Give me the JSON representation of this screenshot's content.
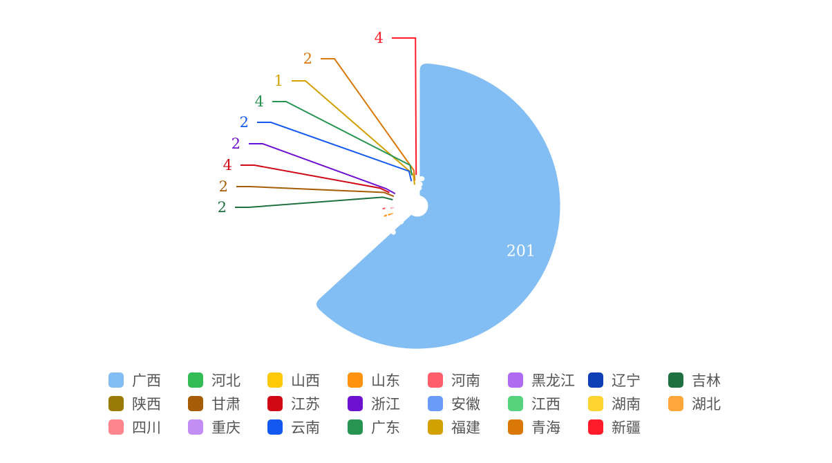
{
  "chart_data": {
    "type": "pie",
    "variant": "rose",
    "legend_position": "bottom",
    "categories": [
      "广西",
      "河北",
      "山西",
      "山东",
      "河南",
      "黑龙江",
      "辽宁",
      "吉林",
      "陕西",
      "甘肃",
      "江苏",
      "浙江",
      "安徽",
      "江西",
      "湖南",
      "湖北",
      "四川",
      "重庆",
      "云南",
      "广东",
      "福建",
      "青海",
      "新疆"
    ],
    "values": [
      201,
      8,
      9,
      11,
      11,
      5,
      5,
      2,
      5,
      2,
      4,
      2,
      6,
      6,
      8,
      6,
      9,
      5,
      2,
      4,
      1,
      2,
      4
    ],
    "colors": [
      "#82BDF4",
      "#33BB55",
      "#FFC808",
      "#FF9310",
      "#FF5F6B",
      "#B06BF3",
      "#0F3FB6",
      "#1F7040",
      "#9A7A06",
      "#A65C05",
      "#D00714",
      "#6E10D0",
      "#6A9BF8",
      "#56D37C",
      "#FFD330",
      "#FFA73A",
      "#FF858C",
      "#C38DF6",
      "#1359F0",
      "#279451",
      "#D3A002",
      "#D97806",
      "#FF1C2A"
    ]
  }
}
